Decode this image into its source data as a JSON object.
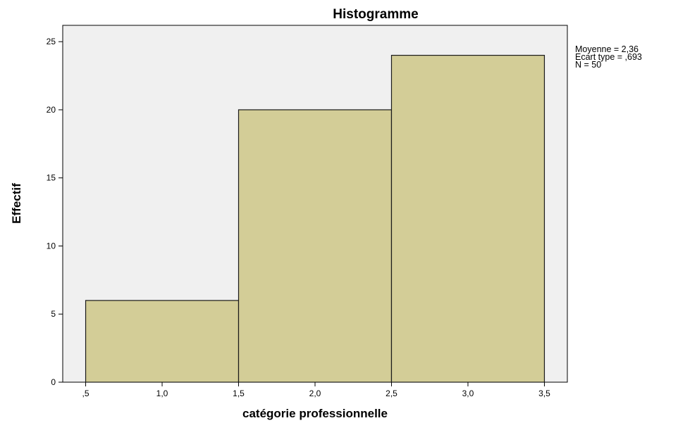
{
  "chart_data": {
    "type": "bar",
    "title": "Histogramme",
    "xlabel": "catégorie professionnelle",
    "ylabel": "Effectif",
    "bins": [
      {
        "from": 0.5,
        "to": 1.5,
        "value": 6
      },
      {
        "from": 1.5,
        "to": 2.5,
        "value": 20
      },
      {
        "from": 2.5,
        "to": 3.5,
        "value": 24
      }
    ],
    "xlim": [
      0.35,
      3.65
    ],
    "ylim": [
      0,
      26.2
    ],
    "x_ticks": [
      0.5,
      1.0,
      1.5,
      2.0,
      2.5,
      3.0,
      3.5
    ],
    "x_tick_labels": [
      ",5",
      "1,0",
      "1,5",
      "2,0",
      "2,5",
      "3,0",
      "3,5"
    ],
    "y_ticks": [
      0,
      5,
      10,
      15,
      20,
      25
    ],
    "y_tick_labels": [
      "0",
      "5",
      "10",
      "15",
      "20",
      "25"
    ],
    "stats_lines": [
      "Moyenne = 2,36",
      "Ecart type = ,693",
      "N = 50"
    ],
    "legend_position": "top-right",
    "grid": false,
    "colors": {
      "bar_fill": "#d3cd97",
      "bar_stroke": "#1a1a1a",
      "plot_background": "#f0f0f0",
      "axis": "#000000"
    }
  }
}
